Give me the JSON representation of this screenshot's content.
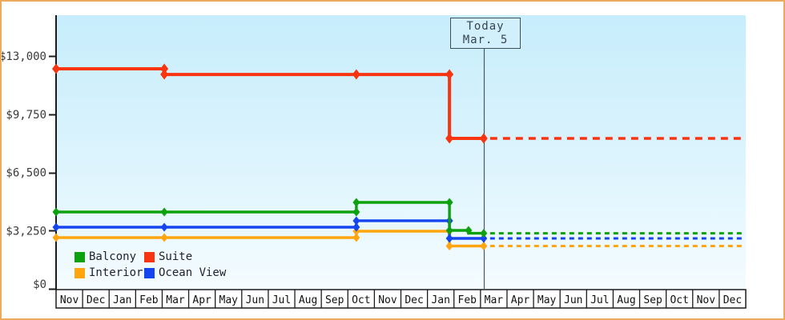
{
  "chart_data": {
    "type": "line",
    "subtype": "step-price-history",
    "today_marker": {
      "line1": "Today",
      "line2": "Mar. 5",
      "month_position": 16.12
    },
    "y_axis": {
      "tick_labels": [
        "$0",
        "$3,250",
        "$6,500",
        "$9,750",
        "$13,000"
      ],
      "tick_values": [
        0,
        3250,
        6500,
        9750,
        13000
      ],
      "min": 0,
      "max": 13000
    },
    "x_axis": {
      "unit": "month",
      "tick_labels": [
        "Nov",
        "Dec",
        "Jan",
        "Feb",
        "Mar",
        "Apr",
        "May",
        "Jun",
        "Jul",
        "Aug",
        "Sep",
        "Oct",
        "Nov",
        "Dec",
        "Jan",
        "Feb",
        "Mar",
        "Apr",
        "May",
        "Jun",
        "Jul",
        "Aug",
        "Sep",
        "Oct",
        "Nov",
        "Dec"
      ],
      "month_count": 26
    },
    "series": [
      {
        "name": "Interior",
        "color": "#ffa50f",
        "steps": [
          {
            "from": 0,
            "to": 11.32,
            "value": 2860
          },
          {
            "from": 11.32,
            "to": 14.83,
            "value": 3215
          },
          {
            "from": 14.83,
            "to": 16.12,
            "value": 2390
          }
        ],
        "forecast": {
          "from": 16.12,
          "to": 26,
          "value": 2390
        },
        "markers": [
          [
            0,
            2860
          ],
          [
            4.08,
            2860
          ],
          [
            11.32,
            2860
          ],
          [
            11.32,
            3215
          ],
          [
            14.83,
            3215
          ],
          [
            14.83,
            2390
          ],
          [
            16.12,
            2390
          ]
        ]
      },
      {
        "name": "Ocean View",
        "color": "#1545ef",
        "steps": [
          {
            "from": 0,
            "to": 11.32,
            "value": 3440
          },
          {
            "from": 11.32,
            "to": 14.83,
            "value": 3800
          },
          {
            "from": 14.83,
            "to": 16.12,
            "value": 2815
          }
        ],
        "forecast": {
          "from": 16.12,
          "to": 26,
          "value": 2815
        },
        "markers": [
          [
            0,
            3440
          ],
          [
            4.08,
            3440
          ],
          [
            11.32,
            3440
          ],
          [
            11.32,
            3800
          ],
          [
            14.83,
            3800
          ],
          [
            14.83,
            2815
          ],
          [
            16.12,
            2815
          ]
        ]
      },
      {
        "name": "Balcony",
        "color": "#0da10d",
        "steps": [
          {
            "from": 0,
            "to": 11.32,
            "value": 4290
          },
          {
            "from": 11.32,
            "to": 14.83,
            "value": 4825
          },
          {
            "from": 14.83,
            "to": 15.55,
            "value": 3260
          },
          {
            "from": 15.55,
            "to": 16.12,
            "value": 3100
          }
        ],
        "forecast": {
          "from": 16.12,
          "to": 26,
          "value": 3100
        },
        "markers": [
          [
            0,
            4290
          ],
          [
            4.08,
            4290
          ],
          [
            11.32,
            4290
          ],
          [
            11.32,
            4825
          ],
          [
            14.83,
            4825
          ],
          [
            14.83,
            3260
          ],
          [
            15.55,
            3260
          ],
          [
            16.12,
            3100
          ]
        ]
      },
      {
        "name": "Suite",
        "color": "#f93410",
        "steps": [
          {
            "from": 0,
            "to": 4.08,
            "value": 12285
          },
          {
            "from": 4.08,
            "to": 14.83,
            "value": 11970
          },
          {
            "from": 14.83,
            "to": 16.12,
            "value": 8400
          }
        ],
        "forecast": {
          "from": 16.12,
          "to": 26,
          "value": 8400
        },
        "markers": [
          [
            0,
            12285
          ],
          [
            4.08,
            12285
          ],
          [
            4.08,
            11970
          ],
          [
            11.32,
            11970
          ],
          [
            14.83,
            11970
          ],
          [
            14.83,
            8400
          ],
          [
            16.12,
            8400
          ]
        ]
      }
    ],
    "legend": [
      {
        "label": "Balcony",
        "color": "#0da10d"
      },
      {
        "label": "Suite",
        "color": "#f93410"
      },
      {
        "label": "Interior",
        "color": "#ffa50f"
      },
      {
        "label": "Ocean View",
        "color": "#1545ef"
      }
    ],
    "colors": {
      "plot_bg_top": "#c7edfc",
      "plot_bg_mid": "#ddf4fd",
      "plot_bg_bottom": "#f5fcff",
      "axis": "#1b1b1b",
      "tick_text": "#3a3a3a",
      "today_line": "#4a5a64",
      "page_border": "#ecaa5d"
    }
  }
}
